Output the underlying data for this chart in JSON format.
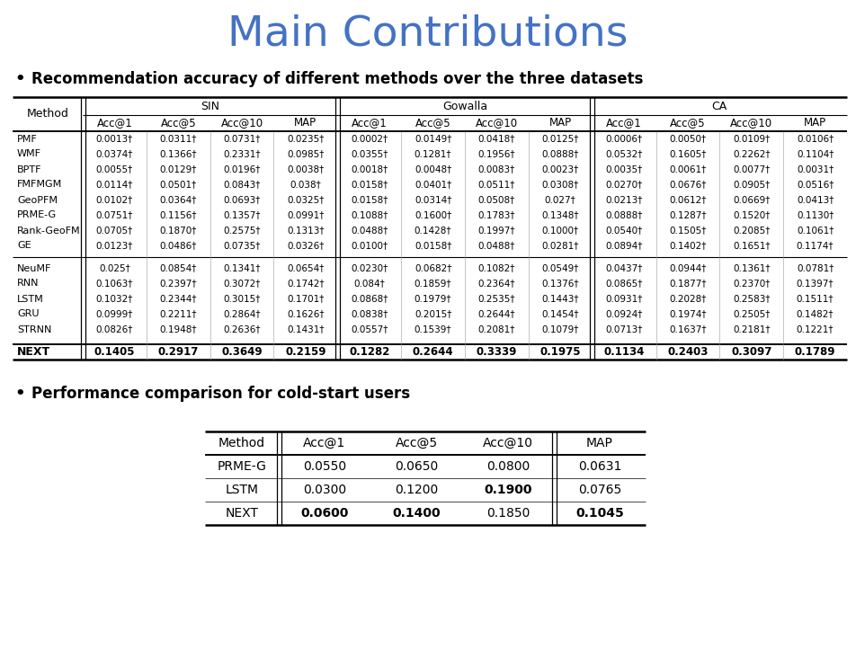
{
  "title": "Main Contributions",
  "title_color": "#4472C4",
  "bullet1": "Recommendation accuracy of different methods over the three datasets",
  "bullet2": "Performance comparison for cold-start users",
  "table1": {
    "sections": [
      {
        "rows": [
          [
            "PMF",
            "0.0013†",
            "0.0311†",
            "0.0731†",
            "0.0235†",
            "0.0002†",
            "0.0149†",
            "0.0418†",
            "0.0125†",
            "0.0006†",
            "0.0050†",
            "0.0109†",
            "0.0106†"
          ],
          [
            "WMF",
            "0.0374†",
            "0.1366†",
            "0.2331†",
            "0.0985†",
            "0.0355†",
            "0.1281†",
            "0.1956†",
            "0.0888†",
            "0.0532†",
            "0.1605†",
            "0.2262†",
            "0.1104†"
          ],
          [
            "BPTF",
            "0.0055†",
            "0.0129†",
            "0.0196†",
            "0.0038†",
            "0.0018†",
            "0.0048†",
            "0.0083†",
            "0.0023†",
            "0.0035†",
            "0.0061†",
            "0.0077†",
            "0.0031†"
          ],
          [
            "FMFMGM",
            "0.0114†",
            "0.0501†",
            "0.0843†",
            "0.038†",
            "0.0158†",
            "0.0401†",
            "0.0511†",
            "0.0308†",
            "0.0270†",
            "0.0676†",
            "0.0905†",
            "0.0516†"
          ],
          [
            "GeoPFM",
            "0.0102†",
            "0.0364†",
            "0.0693†",
            "0.0325†",
            "0.0158†",
            "0.0314†",
            "0.0508†",
            "0.027†",
            "0.0213†",
            "0.0612†",
            "0.0669†",
            "0.0413†"
          ],
          [
            "PRME-G",
            "0.0751†",
            "0.1156†",
            "0.1357†",
            "0.0991†",
            "0.1088†",
            "0.1600†",
            "0.1783†",
            "0.1348†",
            "0.0888†",
            "0.1287†",
            "0.1520†",
            "0.1130†"
          ],
          [
            "Rank-GeoFM",
            "0.0705†",
            "0.1870†",
            "0.2575†",
            "0.1313†",
            "0.0488†",
            "0.1428†",
            "0.1997†",
            "0.1000†",
            "0.0540†",
            "0.1505†",
            "0.2085†",
            "0.1061†"
          ],
          [
            "GE",
            "0.0123†",
            "0.0486†",
            "0.0735†",
            "0.0326†",
            "0.0100†",
            "0.0158†",
            "0.0488†",
            "0.0281†",
            "0.0894†",
            "0.1402†",
            "0.1651†",
            "0.1174†"
          ]
        ]
      },
      {
        "rows": [
          [
            "NeuMF",
            "0.025†",
            "0.0854†",
            "0.1341†",
            "0.0654†",
            "0.0230†",
            "0.0682†",
            "0.1082†",
            "0.0549†",
            "0.0437†",
            "0.0944†",
            "0.1361†",
            "0.0781†"
          ],
          [
            "RNN",
            "0.1063†",
            "0.2397†",
            "0.3072†",
            "0.1742†",
            "0.084†",
            "0.1859†",
            "0.2364†",
            "0.1376†",
            "0.0865†",
            "0.1877†",
            "0.2370†",
            "0.1397†"
          ],
          [
            "LSTM",
            "0.1032†",
            "0.2344†",
            "0.3015†",
            "0.1701†",
            "0.0868†",
            "0.1979†",
            "0.2535†",
            "0.1443†",
            "0.0931†",
            "0.2028†",
            "0.2583†",
            "0.1511†"
          ],
          [
            "GRU",
            "0.0999†",
            "0.2211†",
            "0.2864†",
            "0.1626†",
            "0.0838†",
            "0.2015†",
            "0.2644†",
            "0.1454†",
            "0.0924†",
            "0.1974†",
            "0.2505†",
            "0.1482†"
          ],
          [
            "STRNN",
            "0.0826†",
            "0.1948†",
            "0.2636†",
            "0.1431†",
            "0.0557†",
            "0.1539†",
            "0.2081†",
            "0.1079†",
            "0.0713†",
            "0.1637†",
            "0.2181†",
            "0.1221†"
          ]
        ]
      }
    ],
    "next_row": [
      "NEXT",
      "0.1405",
      "0.2917",
      "0.3649",
      "0.2159",
      "0.1282",
      "0.2644",
      "0.3339",
      "0.1975",
      "0.1134",
      "0.2403",
      "0.3097",
      "0.1789"
    ]
  },
  "table2": {
    "headers": [
      "Method",
      "Acc@1",
      "Acc@5",
      "Acc@10",
      "MAP"
    ],
    "rows": [
      [
        "PRME-G",
        "0.0550",
        "0.0650",
        "0.0800",
        "0.0631"
      ],
      [
        "LSTM",
        "0.0300",
        "0.1200",
        "0.1900",
        "0.0765"
      ],
      [
        "NEXT",
        "0.0600",
        "0.1400",
        "0.1850",
        "0.1045"
      ]
    ],
    "bold_cells": [
      [
        false,
        false,
        false,
        false,
        false
      ],
      [
        false,
        false,
        false,
        true,
        false
      ],
      [
        false,
        true,
        true,
        false,
        true
      ]
    ]
  }
}
